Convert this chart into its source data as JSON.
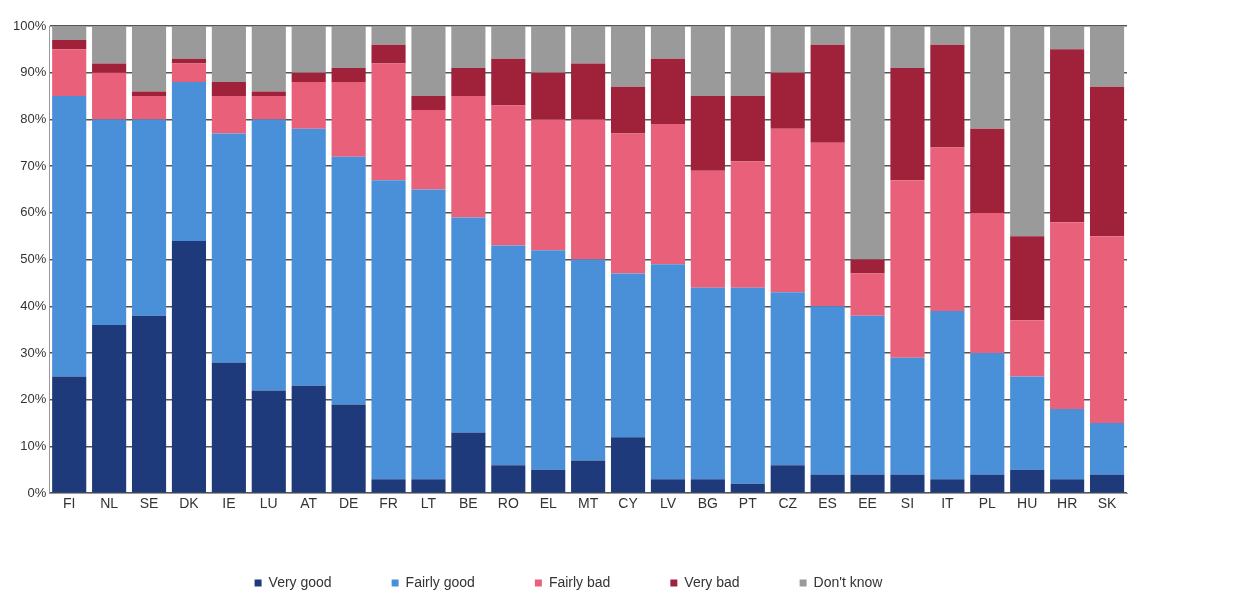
{
  "chart_data": {
    "type": "bar",
    "stacked": true,
    "categories": [
      "FI",
      "NL",
      "SE",
      "DK",
      "IE",
      "LU",
      "AT",
      "DE",
      "FR",
      "LT",
      "BE",
      "RO",
      "EL",
      "MT",
      "CY",
      "LV",
      "BG",
      "PT",
      "CZ",
      "ES",
      "EE",
      "SI",
      "IT",
      "PL",
      "HU",
      "HR",
      "SK"
    ],
    "series": [
      {
        "name": "Very good",
        "color": "#1f3a7a",
        "values": [
          25,
          36,
          38,
          54,
          28,
          22,
          23,
          19,
          3,
          3,
          13,
          6,
          5,
          7,
          12,
          3,
          3,
          2,
          6,
          4,
          4,
          4,
          3,
          4,
          5,
          3,
          4
        ]
      },
      {
        "name": "Fairly good",
        "color": "#4a90d9",
        "values": [
          60,
          44,
          42,
          34,
          49,
          58,
          55,
          53,
          64,
          62,
          46,
          47,
          47,
          43,
          35,
          46,
          41,
          42,
          37,
          36,
          34,
          25,
          36,
          26,
          20,
          15,
          11
        ]
      },
      {
        "name": "Fairly bad",
        "color": "#e8607a",
        "values": [
          10,
          10,
          5,
          4,
          8,
          5,
          10,
          16,
          25,
          17,
          26,
          30,
          28,
          30,
          30,
          30,
          25,
          27,
          35,
          35,
          9,
          38,
          35,
          30,
          12,
          40,
          40
        ]
      },
      {
        "name": "Very bad",
        "color": "#a0213a",
        "values": [
          2,
          2,
          1,
          1,
          3,
          1,
          2,
          3,
          4,
          3,
          6,
          10,
          10,
          12,
          10,
          14,
          16,
          14,
          12,
          21,
          3,
          24,
          22,
          18,
          18,
          37,
          32
        ]
      },
      {
        "name": "Don't know",
        "color": "#9a9a9a",
        "values": [
          3,
          8,
          14,
          7,
          12,
          14,
          10,
          9,
          4,
          15,
          9,
          7,
          10,
          8,
          13,
          7,
          15,
          15,
          10,
          4,
          50,
          9,
          4,
          22,
          45,
          5,
          13
        ]
      }
    ],
    "ylim": [
      0,
      100
    ],
    "yticks": [
      {
        "value": 0,
        "label": "0%"
      },
      {
        "value": 10,
        "label": "10%"
      },
      {
        "value": 20,
        "label": "20%"
      },
      {
        "value": 30,
        "label": "30%"
      },
      {
        "value": 40,
        "label": "40%"
      },
      {
        "value": 50,
        "label": "50%"
      },
      {
        "value": 60,
        "label": "60%"
      },
      {
        "value": 70,
        "label": "70%"
      },
      {
        "value": 80,
        "label": "80%"
      },
      {
        "value": 90,
        "label": "90%"
      },
      {
        "value": 100,
        "label": "100%"
      }
    ],
    "grid": "y",
    "legend": "bottom"
  }
}
